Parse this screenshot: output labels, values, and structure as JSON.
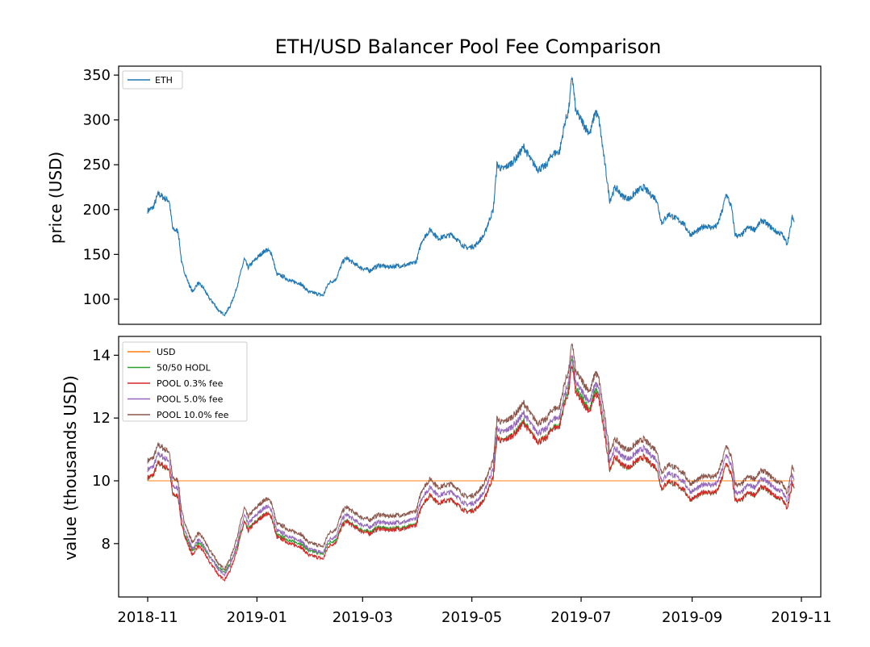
{
  "figure_title": "ETH/USD Balancer Pool Fee Comparison",
  "chart_data": [
    {
      "type": "line",
      "ylabel": "price (USD)",
      "xlim": [
        "2018-11-01",
        "2019-11-01"
      ],
      "ylim": [
        72,
        360
      ],
      "yticks": [
        100,
        150,
        200,
        250,
        300,
        350
      ],
      "grid": false,
      "legend_position": "top-left",
      "series": [
        {
          "name": "ETH",
          "color": "#1f77b4",
          "points": [
            [
              "2018-11-01",
              199
            ],
            [
              "2018-11-04",
              202
            ],
            [
              "2018-11-07",
              218
            ],
            [
              "2018-11-10",
              213
            ],
            [
              "2018-11-13",
              210
            ],
            [
              "2018-11-15",
              178
            ],
            [
              "2018-11-18",
              176
            ],
            [
              "2018-11-20",
              140
            ],
            [
              "2018-11-23",
              122
            ],
            [
              "2018-11-26",
              108
            ],
            [
              "2018-11-29",
              118
            ],
            [
              "2018-12-02",
              113
            ],
            [
              "2018-12-05",
              102
            ],
            [
              "2018-12-08",
              95
            ],
            [
              "2018-12-11",
              86
            ],
            [
              "2018-12-14",
              83
            ],
            [
              "2018-12-17",
              92
            ],
            [
              "2018-12-20",
              108
            ],
            [
              "2018-12-23",
              130
            ],
            [
              "2018-12-25",
              145
            ],
            [
              "2018-12-27",
              135
            ],
            [
              "2018-12-30",
              142
            ],
            [
              "2019-01-03",
              150
            ],
            [
              "2019-01-06",
              155
            ],
            [
              "2019-01-09",
              152
            ],
            [
              "2019-01-12",
              128
            ],
            [
              "2019-01-16",
              125
            ],
            [
              "2019-01-20",
              120
            ],
            [
              "2019-01-25",
              118
            ],
            [
              "2019-01-30",
              108
            ],
            [
              "2019-02-04",
              106
            ],
            [
              "2019-02-07",
              104
            ],
            [
              "2019-02-10",
              118
            ],
            [
              "2019-02-14",
              122
            ],
            [
              "2019-02-18",
              142
            ],
            [
              "2019-02-20",
              146
            ],
            [
              "2019-02-24",
              140
            ],
            [
              "2019-02-28",
              135
            ],
            [
              "2019-03-05",
              132
            ],
            [
              "2019-03-10",
              138
            ],
            [
              "2019-03-15",
              136
            ],
            [
              "2019-03-20",
              137
            ],
            [
              "2019-03-26",
              138
            ],
            [
              "2019-03-31",
              142
            ],
            [
              "2019-04-03",
              165
            ],
            [
              "2019-04-08",
              178
            ],
            [
              "2019-04-12",
              168
            ],
            [
              "2019-04-16",
              170
            ],
            [
              "2019-04-20",
              172
            ],
            [
              "2019-04-25",
              162
            ],
            [
              "2019-04-28",
              157
            ],
            [
              "2019-05-03",
              160
            ],
            [
              "2019-05-08",
              172
            ],
            [
              "2019-05-11",
              190
            ],
            [
              "2019-05-13",
              200
            ],
            [
              "2019-05-15",
              250
            ],
            [
              "2019-05-18",
              245
            ],
            [
              "2019-05-22",
              250
            ],
            [
              "2019-05-26",
              258
            ],
            [
              "2019-05-30",
              270
            ],
            [
              "2019-06-03",
              255
            ],
            [
              "2019-06-07",
              245
            ],
            [
              "2019-06-11",
              248
            ],
            [
              "2019-06-15",
              262
            ],
            [
              "2019-06-19",
              265
            ],
            [
              "2019-06-22",
              298
            ],
            [
              "2019-06-24",
              310
            ],
            [
              "2019-06-26",
              350
            ],
            [
              "2019-06-28",
              310
            ],
            [
              "2019-07-01",
              300
            ],
            [
              "2019-07-04",
              290
            ],
            [
              "2019-07-06",
              285
            ],
            [
              "2019-07-09",
              310
            ],
            [
              "2019-07-11",
              300
            ],
            [
              "2019-07-13",
              270
            ],
            [
              "2019-07-15",
              240
            ],
            [
              "2019-07-17",
              210
            ],
            [
              "2019-07-20",
              225
            ],
            [
              "2019-07-24",
              215
            ],
            [
              "2019-07-28",
              212
            ],
            [
              "2019-08-01",
              220
            ],
            [
              "2019-08-05",
              225
            ],
            [
              "2019-08-08",
              218
            ],
            [
              "2019-08-12",
              212
            ],
            [
              "2019-08-15",
              185
            ],
            [
              "2019-08-19",
              195
            ],
            [
              "2019-08-23",
              190
            ],
            [
              "2019-08-27",
              185
            ],
            [
              "2019-08-31",
              172
            ],
            [
              "2019-09-04",
              176
            ],
            [
              "2019-09-08",
              182
            ],
            [
              "2019-09-12",
              180
            ],
            [
              "2019-09-15",
              182
            ],
            [
              "2019-09-18",
              200
            ],
            [
              "2019-09-20",
              218
            ],
            [
              "2019-09-23",
              202
            ],
            [
              "2019-09-25",
              172
            ],
            [
              "2019-09-28",
              170
            ],
            [
              "2019-10-02",
              180
            ],
            [
              "2019-10-06",
              178
            ],
            [
              "2019-10-10",
              188
            ],
            [
              "2019-10-14",
              182
            ],
            [
              "2019-10-18",
              175
            ],
            [
              "2019-10-21",
              173
            ],
            [
              "2019-10-24",
              162
            ],
            [
              "2019-10-26",
              180
            ],
            [
              "2019-10-27",
              193
            ],
            [
              "2019-10-28",
              186
            ]
          ]
        }
      ]
    },
    {
      "type": "line",
      "ylabel": "value (thousands USD)",
      "xlim": [
        "2018-11-01",
        "2019-11-01"
      ],
      "ylim": [
        6.3,
        14.6
      ],
      "yticks": [
        8,
        10,
        12,
        14
      ],
      "xticks": [
        "2018-11",
        "2019-01",
        "2019-03",
        "2019-05",
        "2019-07",
        "2019-09",
        "2019-11"
      ],
      "grid": false,
      "legend_position": "top-left",
      "series": [
        {
          "name": "USD",
          "color": "#ff7f0e",
          "style": "constant",
          "value": 10
        },
        {
          "name": "50/50 HODL",
          "color": "#2ca02c",
          "style": "hodl"
        },
        {
          "name": "POOL 0.3% fee",
          "color": "#d62728",
          "style": "pool",
          "fee_pct": 0.3
        },
        {
          "name": "POOL 5.0% fee",
          "color": "#9467bd",
          "style": "pool",
          "fee_pct": 5.0
        },
        {
          "name": "POOL 10.0% fee",
          "color": "#8c564b",
          "style": "pool",
          "fee_pct": 10.0
        }
      ]
    }
  ]
}
